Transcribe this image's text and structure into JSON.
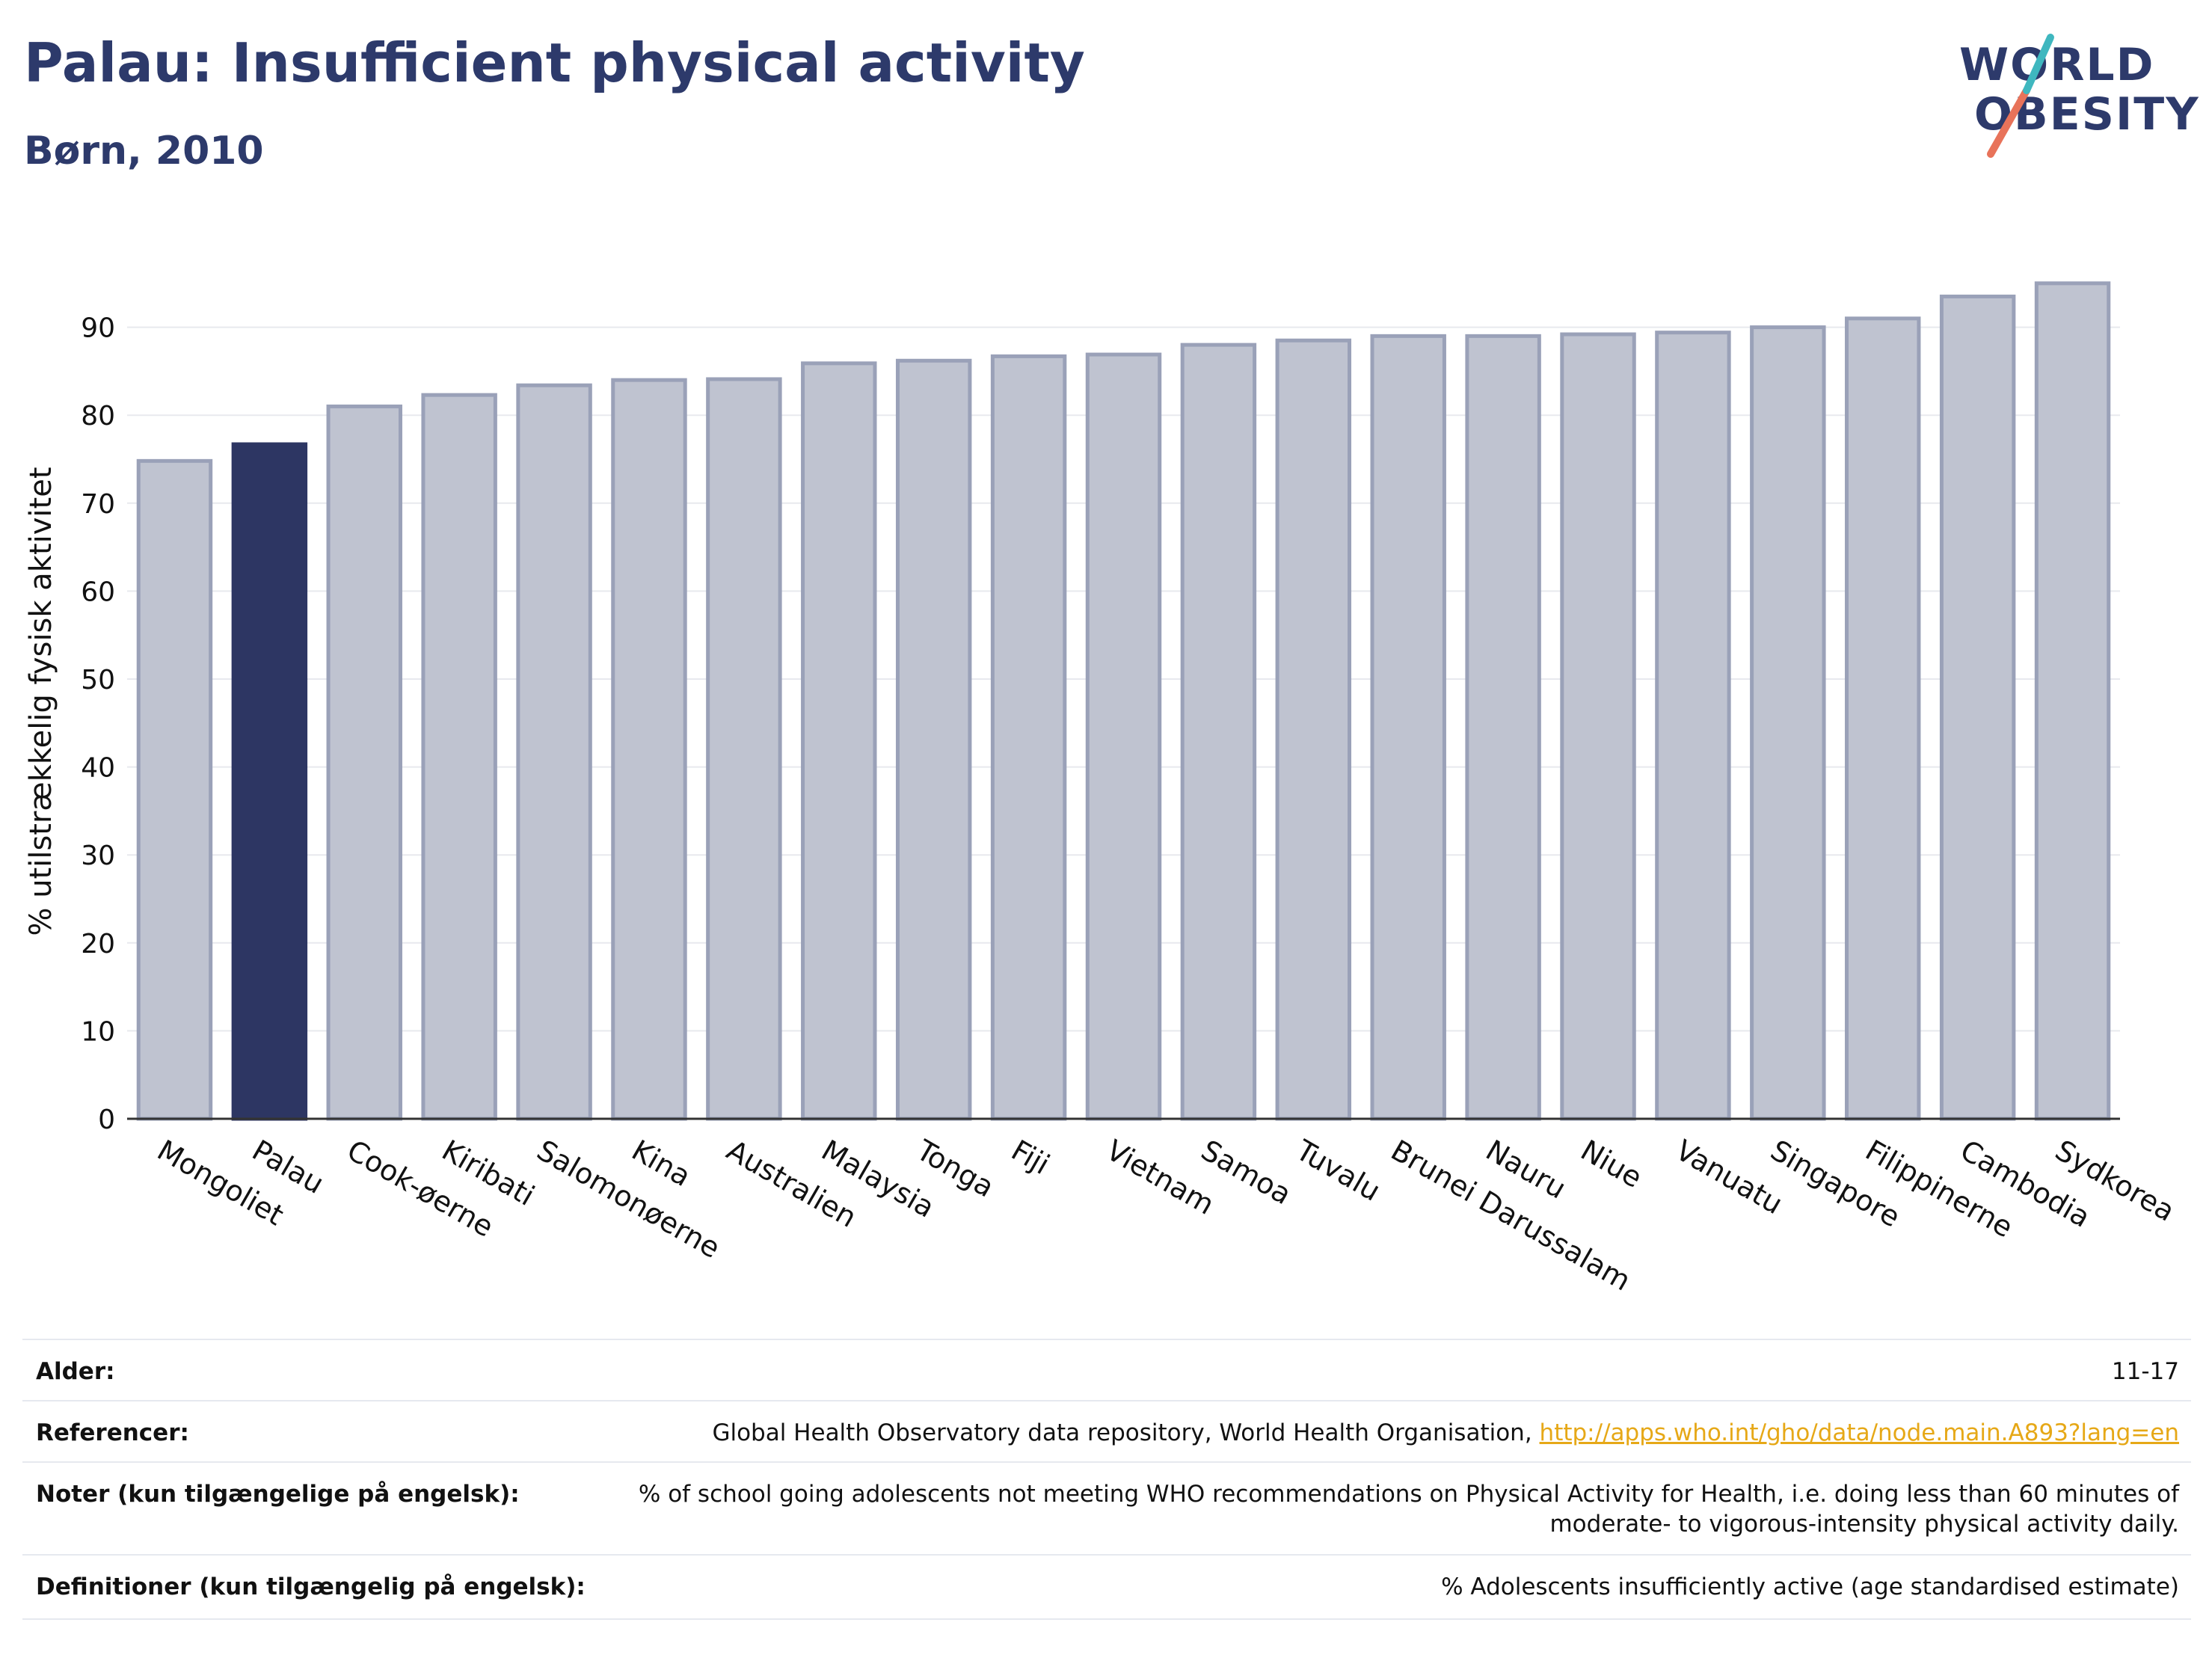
{
  "header": {
    "title": "Palau: Insufficient physical activity",
    "subtitle": "Børn, 2010"
  },
  "logo": {
    "line1": "WORLD",
    "line2": "OBESITY"
  },
  "chart_data": {
    "type": "bar",
    "ylabel": "% utilstrækkelig fysisk aktivitet",
    "ylim": [
      0,
      100
    ],
    "yticks": [
      0,
      10,
      20,
      30,
      40,
      50,
      60,
      70,
      80,
      90
    ],
    "grid": true,
    "highlight": "Palau",
    "colors": {
      "bar": "#bfc3d0",
      "bar_edge": "#9aa1b8",
      "highlight": "#2d3663"
    },
    "categories": [
      "Mongoliet",
      "Palau",
      "Cook-øerne",
      "Kiribati",
      "Salomonøerne",
      "Kina",
      "Australien",
      "Malaysia",
      "Tonga",
      "Fiji",
      "Vietnam",
      "Samoa",
      "Tuvalu",
      "Brunei Darussalam",
      "Nauru",
      "Niue",
      "Vanuatu",
      "Singapore",
      "Filippinerne",
      "Cambodia",
      "Sydkorea"
    ],
    "values": [
      74.8,
      76.7,
      81.0,
      82.3,
      83.4,
      84.0,
      84.1,
      85.9,
      86.2,
      86.7,
      86.9,
      88.0,
      88.5,
      89.0,
      89.0,
      89.2,
      89.4,
      90.0,
      91.0,
      93.5,
      95.0
    ]
  },
  "info": {
    "rows": [
      {
        "label": "Alder:",
        "value": "11-17"
      },
      {
        "label": "Referencer:",
        "value": "Global Health Observatory data repository, World Health Organisation, ",
        "link": "http://apps.who.int/gho/data/node.main.A893?lang=en"
      },
      {
        "label": "Noter (kun tilgængelige på engelsk):",
        "value": "% of school going adolescents not meeting WHO recommendations on Physical Activity for Health, i.e. doing less than 60 minutes of",
        "value2": "moderate- to vigorous-intensity physical activity daily."
      },
      {
        "label": "Definitioner (kun tilgængelig på engelsk):",
        "value": "% Adolescents insufficiently active (age standardised estimate)"
      }
    ]
  }
}
